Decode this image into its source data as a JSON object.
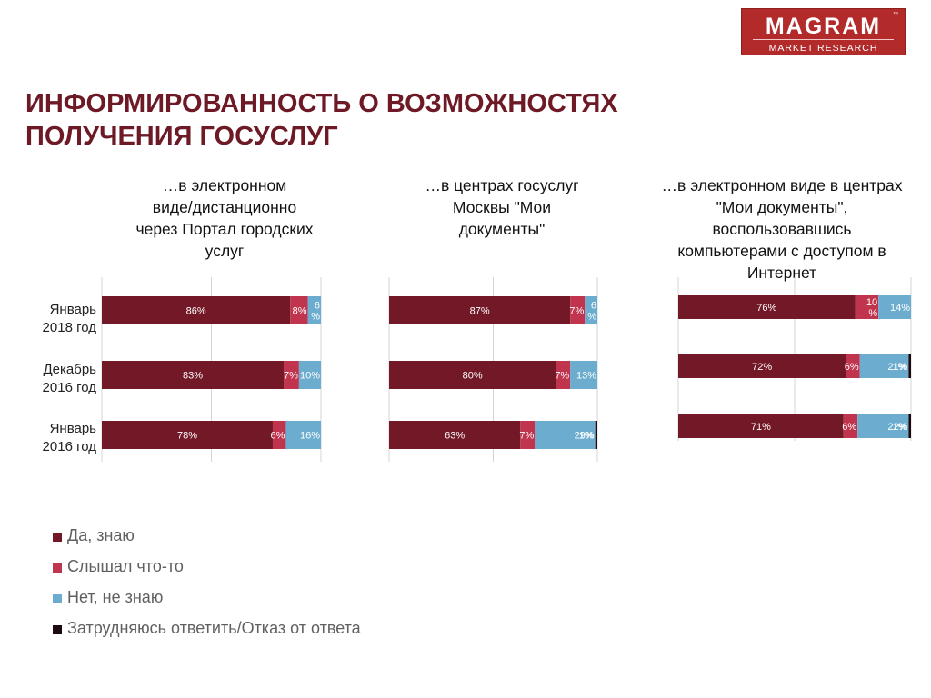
{
  "logo": {
    "brand": "MAGRAM",
    "tagline": "MARKET RESEARCH",
    "tm": "™"
  },
  "title": {
    "line1": "ИНФОРМИРОВАННОСТЬ О ВОЗМОЖНОСТЯХ",
    "line2": "ПОЛУЧЕНИЯ ГОСУСЛУГ"
  },
  "row_labels": [
    {
      "line1": "Январь",
      "line2": "2018 год"
    },
    {
      "line1": "Декабрь",
      "line2": "2016 год"
    },
    {
      "line1": "Январь",
      "line2": "2016 год"
    }
  ],
  "colors": {
    "yes": "#731827",
    "heard": "#c0344e",
    "no": "#6cadcf",
    "refuse": "#1c0a0e",
    "gridline": "#d4d4d4",
    "title": "#6d1a26"
  },
  "legend": [
    {
      "label": "Да, знаю",
      "color": "#731827"
    },
    {
      "label": "Слышал что-то",
      "color": "#c0344e"
    },
    {
      "label": "Нет, не знаю",
      "color": "#6cadcf"
    },
    {
      "label": "Затрудняюсь ответить/Отказ от ответа",
      "color": "#1c0a0e"
    }
  ],
  "chart_data": [
    {
      "type": "bar",
      "orientation": "horizontal",
      "stacked": true,
      "title_lines": [
        "…в  электронном",
        "виде/дистанционно",
        "через Портал городских",
        "услуг"
      ],
      "categories": [
        "Январь 2018 год",
        "Декабрь 2016 год",
        "Январь 2016 год"
      ],
      "series": [
        {
          "name": "Да, знаю",
          "values": [
            86,
            83,
            78
          ],
          "labels": [
            "86%",
            "83%",
            "78%"
          ]
        },
        {
          "name": "Слышал что-то",
          "values": [
            8,
            7,
            6
          ],
          "labels": [
            "8%",
            "7%",
            "6%"
          ]
        },
        {
          "name": "Нет, не знаю",
          "values": [
            6,
            10,
            16
          ],
          "labels": [
            "6|%",
            "10%",
            "16%"
          ]
        },
        {
          "name": "Затрудняюсь ответить/Отказ от ответа",
          "values": [
            0,
            0,
            0
          ],
          "labels": [
            "",
            "",
            ""
          ]
        }
      ],
      "xlim": [
        0,
        100
      ]
    },
    {
      "type": "bar",
      "orientation": "horizontal",
      "stacked": true,
      "title_lines": [
        "…в  центрах госуслуг",
        "Москвы \"Мои",
        "документы\""
      ],
      "categories": [
        "Январь 2018 год",
        "Декабрь 2016 год",
        "Январь 2016 год"
      ],
      "series": [
        {
          "name": "Да, знаю",
          "values": [
            87,
            80,
            63
          ],
          "labels": [
            "87%",
            "80%",
            "63%"
          ]
        },
        {
          "name": "Слышал что-то",
          "values": [
            7,
            7,
            7
          ],
          "labels": [
            "7%",
            "7%",
            "7%"
          ]
        },
        {
          "name": "Нет, не знаю",
          "values": [
            6,
            13,
            29
          ],
          "labels": [
            "6|%",
            "13%",
            "29%"
          ]
        },
        {
          "name": "Затрудняюсь ответить/Отказ от ответа",
          "values": [
            0,
            0,
            1
          ],
          "labels": [
            "",
            "",
            "1%"
          ]
        }
      ],
      "xlim": [
        0,
        100
      ]
    },
    {
      "type": "bar",
      "orientation": "horizontal",
      "stacked": true,
      "title_lines": [
        "…в  электронном виде в центрах",
        "\"Мои документы\",",
        "воспользовавшись",
        "компьютерами с доступом в",
        "Интернет"
      ],
      "categories": [
        "Январь 2018 год",
        "Декабрь 2016 год",
        "Январь 2016 год"
      ],
      "series": [
        {
          "name": "Да, знаю",
          "values": [
            76,
            72,
            71
          ],
          "labels": [
            "76%",
            "72%",
            "71%"
          ]
        },
        {
          "name": "Слышал что-то",
          "values": [
            10,
            6,
            6
          ],
          "labels": [
            "10|%",
            "6%",
            "6%"
          ]
        },
        {
          "name": "Нет, не знаю",
          "values": [
            14,
            21,
            22
          ],
          "labels": [
            "14%",
            "21%",
            "22%"
          ]
        },
        {
          "name": "Затрудняюсь ответить/Отказ от ответа",
          "values": [
            0,
            1,
            1
          ],
          "labels": [
            "",
            "1%",
            "1%"
          ]
        }
      ],
      "xlim": [
        0,
        100
      ]
    }
  ]
}
